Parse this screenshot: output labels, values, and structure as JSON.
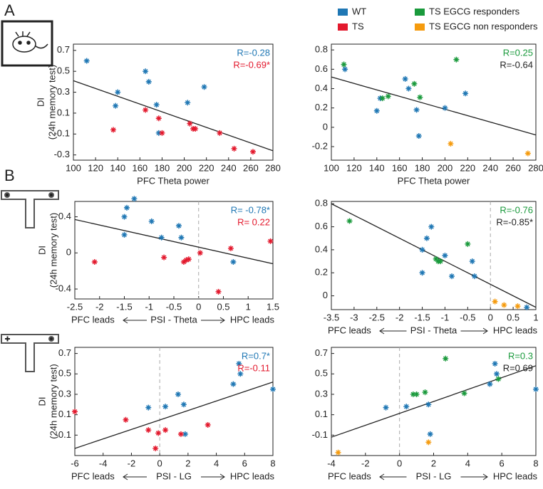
{
  "panel_labels": [
    "A",
    "B"
  ],
  "legend": [
    {
      "name": "WT",
      "color": "#1f77b4"
    },
    {
      "name": "TS",
      "color": "#e3192d"
    },
    {
      "name": "TS EGCG responders",
      "color": "#1a9a3c"
    },
    {
      "name": "TS EGCG non responders",
      "color": "#f59b0e"
    }
  ],
  "chart_data": [
    {
      "type": "scatter",
      "xlabel": "PFC Theta power",
      "ylabel": "DI",
      "ylabel2": "(24h memory test)",
      "xlim": [
        100,
        280
      ],
      "ylim": [
        -0.35,
        0.76
      ],
      "xticks": [
        100,
        120,
        140,
        160,
        180,
        200,
        220,
        240,
        260,
        280
      ],
      "yticks": [
        -0.3,
        -0.1,
        0.1,
        0.3,
        0.5,
        0.7
      ],
      "series": [
        {
          "color": "#1f77b4",
          "x": [
            112,
            140,
            138,
            165,
            168,
            175,
            177,
            203,
            218
          ],
          "values": [
            0.6,
            0.3,
            0.17,
            0.5,
            0.4,
            0.18,
            -0.09,
            0.2,
            0.35
          ]
        },
        {
          "color": "#e3192d",
          "x": [
            136,
            165,
            177,
            180,
            205,
            208,
            210,
            232,
            245,
            262
          ],
          "values": [
            -0.06,
            0.13,
            0.05,
            -0.09,
            0.0,
            -0.05,
            -0.05,
            -0.09,
            -0.24,
            -0.27
          ]
        }
      ],
      "fit": {
        "x": [
          100,
          280
        ],
        "values": [
          0.41,
          -0.26
        ]
      },
      "annotations": [
        {
          "text": "R=-0.28",
          "color": "#1f77b4"
        },
        {
          "text": "R=-0.69*",
          "color": "#e3192d"
        }
      ]
    },
    {
      "type": "scatter",
      "xlabel": "PFC Theta power",
      "xlim": [
        100,
        280
      ],
      "ylim": [
        -0.34,
        0.86
      ],
      "xticks": [
        100,
        120,
        140,
        160,
        180,
        200,
        220,
        240,
        260,
        280
      ],
      "yticks": [
        -0.2,
        0,
        0.2,
        0.4,
        0.6,
        0.8
      ],
      "series": [
        {
          "color": "#1f77b4",
          "x": [
            112,
            140,
            143,
            165,
            168,
            175,
            177,
            200,
            218
          ],
          "values": [
            0.6,
            0.17,
            0.3,
            0.5,
            0.4,
            0.18,
            -0.09,
            0.2,
            0.35
          ]
        },
        {
          "color": "#1a9a3c",
          "x": [
            111,
            145,
            150,
            173,
            178,
            210
          ],
          "values": [
            0.65,
            0.3,
            0.32,
            0.45,
            0.31,
            0.7
          ]
        },
        {
          "color": "#f59b0e",
          "x": [
            205,
            273
          ],
          "values": [
            -0.17,
            -0.27
          ]
        }
      ],
      "fit": {
        "x": [
          100,
          280
        ],
        "values": [
          0.52,
          -0.08
        ]
      },
      "annotations": [
        {
          "text": "R=0.25",
          "color": "#1a9a3c"
        },
        {
          "text": "R=-0.64",
          "color": "#222222"
        }
      ]
    },
    {
      "type": "scatter",
      "xlabel": "PSI - Theta",
      "ylabel": "DI",
      "ylabel2": "(24h memory test)",
      "left_label": "PFC leads",
      "right_label": "HPC leads",
      "vline": 0,
      "xlim": [
        -2.5,
        1.5
      ],
      "ylim": [
        -0.51,
        0.57
      ],
      "xticks": [
        -2.5,
        -2,
        -1.5,
        -1,
        -0.5,
        0,
        0.5,
        1,
        1.5
      ],
      "yticks": [
        -0.4,
        0,
        0.4
      ],
      "series": [
        {
          "color": "#1f77b4",
          "x": [
            -1.5,
            -1.45,
            -1.3,
            -1.5,
            -0.95,
            -0.75,
            -0.4,
            -0.35,
            0.7
          ],
          "values": [
            0.4,
            0.5,
            0.6,
            0.2,
            0.35,
            0.17,
            0.3,
            0.17,
            -0.1
          ]
        },
        {
          "color": "#e3192d",
          "x": [
            -2.1,
            -0.7,
            -0.3,
            -0.25,
            -0.2,
            0.03,
            0.65,
            0.4,
            1.45
          ],
          "values": [
            -0.1,
            -0.05,
            -0.1,
            -0.08,
            -0.07,
            0.0,
            0.05,
            -0.43,
            0.13
          ]
        }
      ],
      "fit": {
        "x": [
          -2.5,
          1.5
        ],
        "values": [
          0.37,
          -0.12
        ]
      },
      "annotations": [
        {
          "text": "R= -0.78*",
          "color": "#1f77b4"
        },
        {
          "text": "R= 0.22",
          "color": "#e3192d"
        }
      ]
    },
    {
      "type": "scatter",
      "xlabel": "PSI - Theta",
      "left_label": "PFC leads",
      "right_label": "HPC leads",
      "vline": 0,
      "xlim": [
        -3.5,
        1
      ],
      "ylim": [
        -0.12,
        0.82
      ],
      "xticks": [
        -3.5,
        -3,
        -2.5,
        -2,
        -1.5,
        -1,
        -0.5,
        0,
        0.5,
        1
      ],
      "yticks": [
        0,
        0.2,
        0.4,
        0.6,
        0.8
      ],
      "series": [
        {
          "color": "#1f77b4",
          "x": [
            -1.5,
            -1.4,
            -1.3,
            -1.5,
            -1.0,
            -0.85,
            -0.4,
            -0.35,
            0.8
          ],
          "values": [
            0.4,
            0.5,
            0.6,
            0.2,
            0.35,
            0.17,
            0.3,
            0.17,
            -0.1
          ]
        },
        {
          "color": "#1a9a3c",
          "x": [
            -3.1,
            -1.2,
            -1.15,
            -1.1,
            -0.5
          ],
          "values": [
            0.65,
            0.32,
            0.3,
            0.3,
            0.45
          ]
        },
        {
          "color": "#f59b0e",
          "x": [
            0.1,
            0.3,
            0.6
          ],
          "values": [
            -0.05,
            -0.08,
            -0.09
          ]
        }
      ],
      "fit": {
        "x": [
          -3.5,
          1
        ],
        "values": [
          0.8,
          -0.1
        ]
      },
      "annotations": [
        {
          "text": "R=-0.76",
          "color": "#1a9a3c"
        },
        {
          "text": "R=-0.85*",
          "color": "#222222"
        }
      ]
    },
    {
      "type": "scatter",
      "xlabel": "PSI - LG",
      "ylabel": "DI",
      "ylabel2": "(24h memory test)",
      "left_label": "PFC leads",
      "right_label": "HPC leads",
      "vline": 0,
      "xlim": [
        -6,
        8
      ],
      "ylim": [
        -0.3,
        0.76
      ],
      "xticks": [
        -6,
        -4,
        -2,
        0,
        2,
        4,
        6,
        8
      ],
      "yticks": [
        -0.1,
        0.1,
        0.3,
        0.5,
        0.7
      ],
      "series": [
        {
          "color": "#1f77b4",
          "x": [
            -0.8,
            0.4,
            1.3,
            1.8,
            1.7,
            5.2,
            5.7,
            5.6,
            8
          ],
          "values": [
            0.17,
            0.18,
            0.3,
            -0.09,
            0.2,
            0.4,
            0.5,
            0.6,
            0.35
          ]
        },
        {
          "color": "#e3192d",
          "x": [
            -6,
            -2.4,
            -0.8,
            -0.1,
            0.4,
            1.5,
            3.4,
            -0.3
          ],
          "values": [
            0.13,
            0.05,
            -0.05,
            -0.08,
            -0.05,
            -0.09,
            0.0,
            -0.23
          ]
        }
      ],
      "fit": {
        "x": [
          -6,
          8
        ],
        "values": [
          -0.23,
          0.42
        ]
      },
      "annotations": [
        {
          "text": "R=0.7*",
          "color": "#1f77b4"
        },
        {
          "text": "R=-0.11",
          "color": "#e3192d"
        }
      ]
    },
    {
      "type": "scatter",
      "xlabel": "PSI - LG",
      "left_label": "PFC leads",
      "right_label": "HPC leads",
      "vline": 0,
      "xlim": [
        -4,
        8
      ],
      "ylim": [
        -0.3,
        0.76
      ],
      "xticks": [
        -4,
        -2,
        0,
        2,
        4,
        6,
        8
      ],
      "yticks": [
        -0.1,
        0.1,
        0.3,
        0.5,
        0.7
      ],
      "series": [
        {
          "color": "#1f77b4",
          "x": [
            -0.8,
            0.4,
            1.7,
            1.8,
            5.3,
            5.7,
            5.6,
            8
          ],
          "values": [
            0.17,
            0.18,
            0.2,
            -0.09,
            0.4,
            0.5,
            0.6,
            0.35
          ]
        },
        {
          "color": "#1a9a3c",
          "x": [
            0.8,
            1.0,
            1.5,
            2.7,
            3.8,
            5.8
          ],
          "values": [
            0.3,
            0.3,
            0.32,
            0.65,
            0.31,
            0.45
          ]
        },
        {
          "color": "#f59b0e",
          "x": [
            -3.6,
            1.7
          ],
          "values": [
            -0.27,
            -0.17
          ]
        }
      ],
      "fit": {
        "x": [
          -4,
          8
        ],
        "values": [
          -0.12,
          0.58
        ]
      },
      "annotations": [
        {
          "text": "R=0.3",
          "color": "#1a9a3c"
        },
        {
          "text": "R=0.69",
          "color": "#222222"
        }
      ]
    }
  ]
}
